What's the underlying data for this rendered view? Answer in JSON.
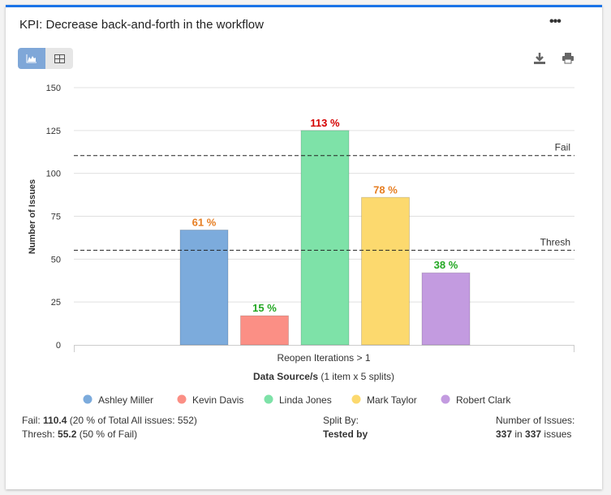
{
  "header": {
    "title": "KPI: Decrease back-and-forth in the workflow",
    "more_icon": "ellipsis-icon",
    "view_chart_icon": "area-chart-icon",
    "view_table_icon": "table-icon",
    "download_icon": "download-icon",
    "print_icon": "print-icon"
  },
  "chart_data": {
    "type": "bar",
    "categories": [
      "Reopen Iterations > 1"
    ],
    "ylabel": "Number of Issues",
    "xlabel_bold": "Data Source/s",
    "xlabel_rest": " (1 item x 5 splits)",
    "ylim": [
      0,
      150
    ],
    "yticks": [
      0,
      25,
      50,
      75,
      100,
      125,
      150
    ],
    "grid": true,
    "legend_position": "bottom",
    "series": [
      {
        "name": "Ashley Miller",
        "value": 67,
        "label": "61 %",
        "color": "#7cabdc",
        "label_color": "#e67e22"
      },
      {
        "name": "Kevin Davis",
        "value": 17,
        "label": "15 %",
        "color": "#fb8f85",
        "label_color": "#22a722"
      },
      {
        "name": "Linda Jones",
        "value": 125,
        "label": "113 %",
        "color": "#7ee2a8",
        "label_color": "#d40000"
      },
      {
        "name": "Mark Taylor",
        "value": 86,
        "label": "78 %",
        "color": "#fcd96e",
        "label_color": "#e67e22"
      },
      {
        "name": "Robert Clark",
        "value": 42,
        "label": "38 %",
        "color": "#c39be0",
        "label_color": "#22a722"
      }
    ],
    "reference_lines": [
      {
        "name": "Fail",
        "value": 110.4
      },
      {
        "name": "Thresh",
        "value": 55.2
      }
    ]
  },
  "footer": {
    "fail_label": "Fail: ",
    "fail_value": "110.4",
    "fail_note": " (20 % of Total All issues: 552)",
    "thresh_label": "Thresh: ",
    "thresh_value": "55.2",
    "thresh_note": " (50 % of Fail)",
    "split_label": "Split By:",
    "split_value": "Tested by",
    "issues_label": "Number of Issues:",
    "issues_count": "337",
    "issues_in": " in ",
    "issues_total": "337",
    "issues_suffix": " issues"
  }
}
